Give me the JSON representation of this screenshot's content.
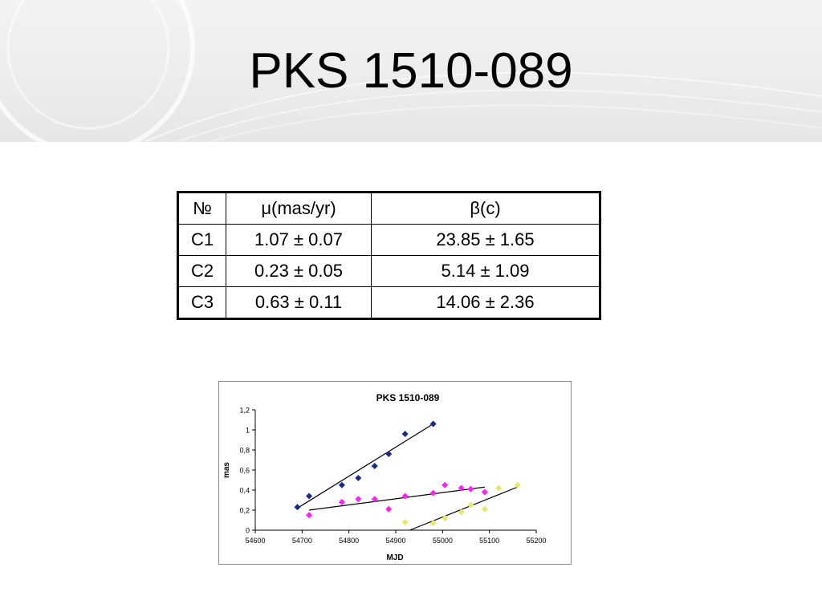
{
  "slide": {
    "title": "PKS 1510-089"
  },
  "table": {
    "headers": [
      "№",
      "μ(mas/yr)",
      "β(c)"
    ],
    "rows": [
      [
        "C1",
        "1.07 ± 0.07",
        "23.85 ± 1.65"
      ],
      [
        "C2",
        "0.23 ± 0.05",
        "5.14 ± 1.09"
      ],
      [
        "C3",
        "0.63 ± 0.11",
        "14.06 ± 2.36"
      ]
    ]
  },
  "chart_data": {
    "type": "scatter",
    "title": "PKS 1510-089",
    "xlabel": "MJD",
    "ylabel": "mas",
    "xlim": [
      54600,
      55200
    ],
    "ylim": [
      0,
      1.2
    ],
    "x_ticks": [
      "54600",
      "54700",
      "54800",
      "54900",
      "55000",
      "55100",
      "55200"
    ],
    "y_ticks": [
      "0",
      "0,2",
      "0,4",
      "0,6",
      "0,8",
      "1",
      "1,2"
    ],
    "grid": false,
    "legend": "none",
    "series": [
      {
        "color": "#1a2a8c",
        "points": [
          [
            54690,
            0.23
          ],
          [
            54715,
            0.34
          ],
          [
            54785,
            0.45
          ],
          [
            54820,
            0.52
          ],
          [
            54855,
            0.64
          ],
          [
            54885,
            0.76
          ],
          [
            54920,
            0.96
          ],
          [
            54980,
            1.06
          ]
        ],
        "trend": [
          [
            54690,
            0.22
          ],
          [
            54980,
            1.06
          ]
        ]
      },
      {
        "color": "#ff22ff",
        "points": [
          [
            54715,
            0.15
          ],
          [
            54785,
            0.28
          ],
          [
            54820,
            0.31
          ],
          [
            54855,
            0.31
          ],
          [
            54885,
            0.21
          ],
          [
            54920,
            0.34
          ],
          [
            54980,
            0.37
          ],
          [
            55005,
            0.45
          ],
          [
            55040,
            0.42
          ],
          [
            55060,
            0.41
          ],
          [
            55090,
            0.38
          ]
        ],
        "trend": [
          [
            54715,
            0.2
          ],
          [
            55090,
            0.43
          ]
        ]
      },
      {
        "color": "#e8e86a",
        "points": [
          [
            54920,
            0.08
          ],
          [
            54980,
            0.07
          ],
          [
            55005,
            0.12
          ],
          [
            55040,
            0.18
          ],
          [
            55060,
            0.25
          ],
          [
            55090,
            0.21
          ],
          [
            55120,
            0.42
          ],
          [
            55160,
            0.45
          ]
        ],
        "trend": [
          [
            54930,
            0.0
          ],
          [
            55160,
            0.43
          ]
        ]
      }
    ]
  }
}
